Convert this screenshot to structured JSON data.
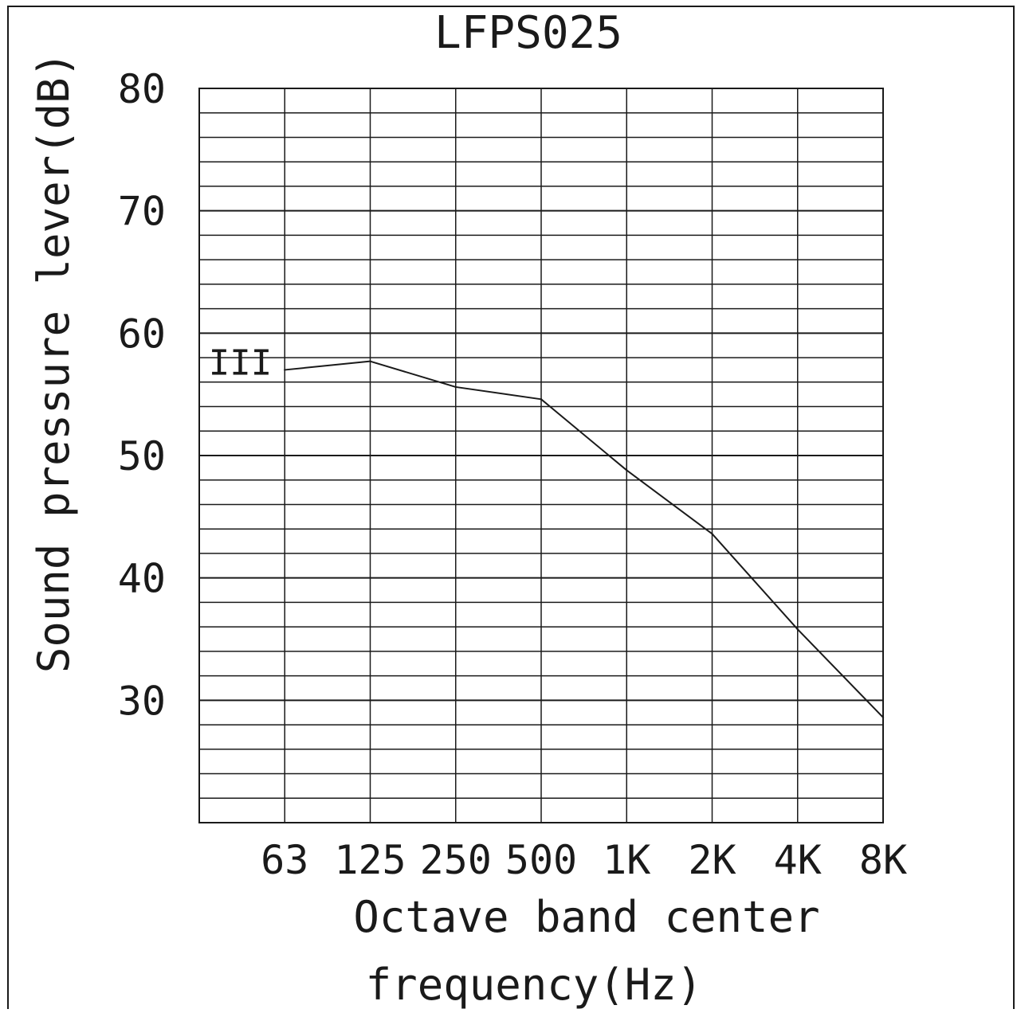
{
  "chart_data": {
    "type": "line",
    "title": "LFPS025",
    "ylabel": "Sound pressure lever(dB)",
    "xlabel_lines": [
      "Octave band center",
      "frequency(Hz)"
    ],
    "categories": [
      "63",
      "125",
      "250",
      "500",
      "1K",
      "2K",
      "4K",
      "8K"
    ],
    "yticks": [
      "80",
      "70",
      "60",
      "50",
      "40",
      "30"
    ],
    "ylim": [
      20,
      80
    ],
    "y_major_step": 10,
    "y_minor_step": 2,
    "grid": true,
    "series": [
      {
        "name": "III",
        "values": [
          57.0,
          57.7,
          55.6,
          54.6,
          48.8,
          43.6,
          35.8,
          28.6
        ]
      }
    ]
  }
}
